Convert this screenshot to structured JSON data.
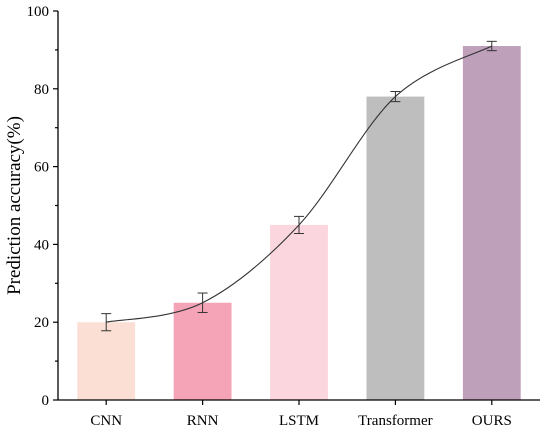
{
  "chart_data": {
    "type": "bar",
    "title": "",
    "xlabel": "",
    "ylabel": "Prediction accuracy(%)",
    "ylim": [
      0,
      100
    ],
    "yticks": [
      0,
      20,
      40,
      60,
      80,
      100
    ],
    "categories": [
      "CNN",
      "RNN",
      "LSTM",
      "Transformer",
      "OURS"
    ],
    "values": [
      20,
      25,
      45,
      78,
      91
    ],
    "errors": [
      2.2,
      2.5,
      2.2,
      1.3,
      1.2
    ],
    "bar_colors": [
      "#FBDFD5",
      "#F5A3B6",
      "#FBD6DE",
      "#BEBEBE",
      "#BFA0BB"
    ],
    "trend_line": true,
    "grid": false
  }
}
